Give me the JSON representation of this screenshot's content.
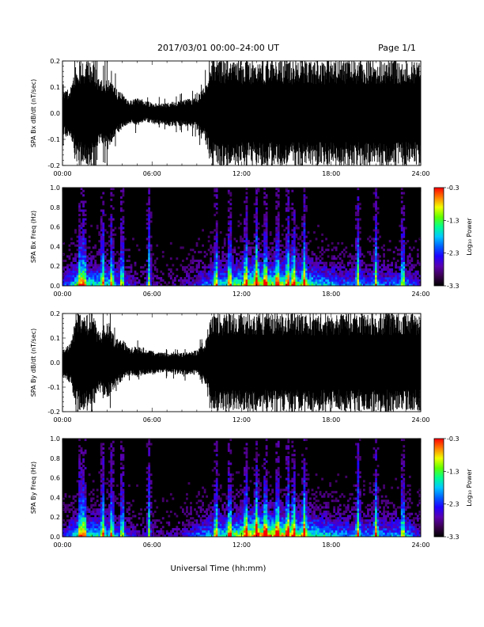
{
  "header": {
    "title": "2017/03/01   00:00–24:00 UT",
    "page": "Page 1/1"
  },
  "xaxis": {
    "label": "Universal Time (hh:mm)",
    "ticks": [
      "00:00",
      "06:00",
      "12:00",
      "18:00",
      "24:00"
    ]
  },
  "colors": {
    "waveform": "#000000",
    "spectrogram_background": "#000000",
    "colormap": [
      "#000000",
      "#3a0050",
      "#5a00b0",
      "#2000ff",
      "#0060ff",
      "#00c8ff",
      "#00ff90",
      "#60ff00",
      "#f0ff00",
      "#ff8000",
      "#ff0000"
    ]
  },
  "chart_data": [
    {
      "type": "line",
      "name": "panel-bx-waveform",
      "ylabel": "SPA Bx dB/dt (nT/sec)",
      "xlim_hours": [
        0,
        24
      ],
      "ylim": [
        -0.2,
        0.2
      ],
      "yticks": [
        "0.2",
        "0.1",
        "0.0",
        "-0.1",
        "-0.2"
      ],
      "envelope": {
        "x_hours": [
          0,
          0.5,
          1,
          1.3,
          1.6,
          2,
          2.5,
          3,
          3.5,
          4,
          4.5,
          5,
          5.5,
          6,
          7,
          8,
          9,
          9.5,
          10,
          10.5,
          11,
          11.5,
          12,
          13,
          14,
          15,
          16,
          17,
          18,
          19,
          20,
          21,
          22,
          22.5,
          23,
          23.5,
          24
        ],
        "upper": [
          0.08,
          0.1,
          0.2,
          0.2,
          0.2,
          0.2,
          0.12,
          0.15,
          0.1,
          0.08,
          0.05,
          0.06,
          0.05,
          0.04,
          0.04,
          0.05,
          0.06,
          0.1,
          0.2,
          0.2,
          0.2,
          0.2,
          0.2,
          0.2,
          0.2,
          0.2,
          0.2,
          0.2,
          0.2,
          0.2,
          0.2,
          0.2,
          0.2,
          0.2,
          0.2,
          0.2,
          0.2
        ],
        "lower": [
          -0.08,
          -0.1,
          -0.2,
          -0.2,
          -0.2,
          -0.2,
          -0.12,
          -0.15,
          -0.1,
          -0.06,
          -0.04,
          -0.05,
          -0.03,
          -0.04,
          -0.05,
          -0.05,
          -0.06,
          -0.1,
          -0.2,
          -0.2,
          -0.2,
          -0.2,
          -0.2,
          -0.2,
          -0.2,
          -0.2,
          -0.2,
          -0.2,
          -0.2,
          -0.2,
          -0.2,
          -0.2,
          -0.2,
          -0.2,
          -0.2,
          -0.2,
          -0.2
        ]
      }
    },
    {
      "type": "heatmap",
      "name": "panel-bx-spectrogram",
      "ylabel": "SPA Bx Freq (Hz)",
      "xlim_hours": [
        0,
        24
      ],
      "ylim": [
        0.0,
        1.0
      ],
      "yticks": [
        "1.0",
        "0.8",
        "0.6",
        "0.4",
        "0.2",
        "0.0"
      ],
      "colorbar": {
        "label": "Log₁₀ Power",
        "ticks": [
          "-0.3",
          "-1.3",
          "-2.3",
          "-3.3"
        ],
        "range": [
          -3.3,
          -0.3
        ]
      },
      "activity": {
        "x_hours": [
          0,
          1,
          2,
          3,
          4,
          5,
          6,
          7,
          8,
          9,
          10,
          11,
          12,
          13,
          14,
          15,
          16,
          17,
          18,
          19,
          20,
          21,
          22,
          23,
          24
        ],
        "level": [
          0.2,
          0.5,
          0.45,
          0.4,
          0.3,
          0.15,
          0.15,
          0.1,
          0.12,
          0.25,
          0.35,
          0.45,
          0.55,
          0.6,
          0.6,
          0.55,
          0.5,
          0.45,
          0.35,
          0.3,
          0.3,
          0.3,
          0.3,
          0.35,
          0.2
        ]
      },
      "bursts_hours": [
        1.2,
        1.45,
        2.7,
        3.3,
        4.0,
        5.8,
        10.3,
        11.2,
        12.3,
        13.0,
        13.6,
        14.4,
        15.1,
        15.5,
        16.2,
        19.8,
        21.0,
        22.8
      ]
    },
    {
      "type": "line",
      "name": "panel-by-waveform",
      "ylabel": "SPA By dB/dt (nT/sec)",
      "xlim_hours": [
        0,
        24
      ],
      "ylim": [
        -0.2,
        0.2
      ],
      "yticks": [
        "0.2",
        "0.1",
        "0.0",
        "-0.1",
        "-0.2"
      ],
      "envelope": {
        "x_hours": [
          0,
          0.5,
          1,
          1.3,
          1.6,
          2,
          2.5,
          3,
          3.5,
          4,
          4.5,
          5,
          5.5,
          6,
          7,
          8,
          9,
          9.5,
          10,
          10.5,
          11,
          11.5,
          12,
          13,
          14,
          15,
          16,
          17,
          18,
          19,
          20,
          21,
          22,
          22.5,
          23,
          23.5,
          24
        ],
        "upper": [
          0.06,
          0.08,
          0.2,
          0.2,
          0.2,
          0.2,
          0.12,
          0.18,
          0.1,
          0.1,
          0.06,
          0.07,
          0.06,
          0.05,
          0.04,
          0.04,
          0.05,
          0.08,
          0.2,
          0.2,
          0.2,
          0.2,
          0.2,
          0.2,
          0.2,
          0.2,
          0.2,
          0.2,
          0.2,
          0.2,
          0.2,
          0.2,
          0.2,
          0.2,
          0.2,
          0.2,
          0.2
        ],
        "lower": [
          -0.06,
          -0.08,
          -0.2,
          -0.2,
          -0.2,
          -0.2,
          -0.12,
          -0.15,
          -0.1,
          -0.08,
          -0.05,
          -0.06,
          -0.05,
          -0.05,
          -0.04,
          -0.05,
          -0.05,
          -0.08,
          -0.2,
          -0.2,
          -0.2,
          -0.2,
          -0.2,
          -0.2,
          -0.2,
          -0.2,
          -0.2,
          -0.2,
          -0.2,
          -0.2,
          -0.2,
          -0.2,
          -0.2,
          -0.2,
          -0.2,
          -0.2,
          -0.2
        ]
      }
    },
    {
      "type": "heatmap",
      "name": "panel-by-spectrogram",
      "ylabel": "SPA By Freq (Hz)",
      "xlim_hours": [
        0,
        24
      ],
      "ylim": [
        0.0,
        1.0
      ],
      "yticks": [
        "1.0",
        "0.8",
        "0.6",
        "0.4",
        "0.2",
        "0.0"
      ],
      "colorbar": {
        "label": "Log₁₀ Power",
        "ticks": [
          "-0.3",
          "-1.3",
          "-2.3",
          "-3.3"
        ],
        "range": [
          -3.3,
          -0.3
        ]
      },
      "activity": {
        "x_hours": [
          0,
          1,
          2,
          3,
          4,
          5,
          6,
          7,
          8,
          9,
          10,
          11,
          12,
          13,
          14,
          15,
          16,
          17,
          18,
          19,
          20,
          21,
          22,
          23,
          24
        ],
        "level": [
          0.2,
          0.5,
          0.45,
          0.4,
          0.3,
          0.15,
          0.15,
          0.12,
          0.15,
          0.3,
          0.4,
          0.5,
          0.6,
          0.7,
          0.7,
          0.65,
          0.55,
          0.5,
          0.4,
          0.35,
          0.35,
          0.35,
          0.35,
          0.4,
          0.2
        ]
      },
      "bursts_hours": [
        1.2,
        1.45,
        2.7,
        3.3,
        4.0,
        5.8,
        10.3,
        11.2,
        12.3,
        13.0,
        13.6,
        14.4,
        15.1,
        15.5,
        16.2,
        19.8,
        21.0,
        22.8
      ]
    }
  ]
}
